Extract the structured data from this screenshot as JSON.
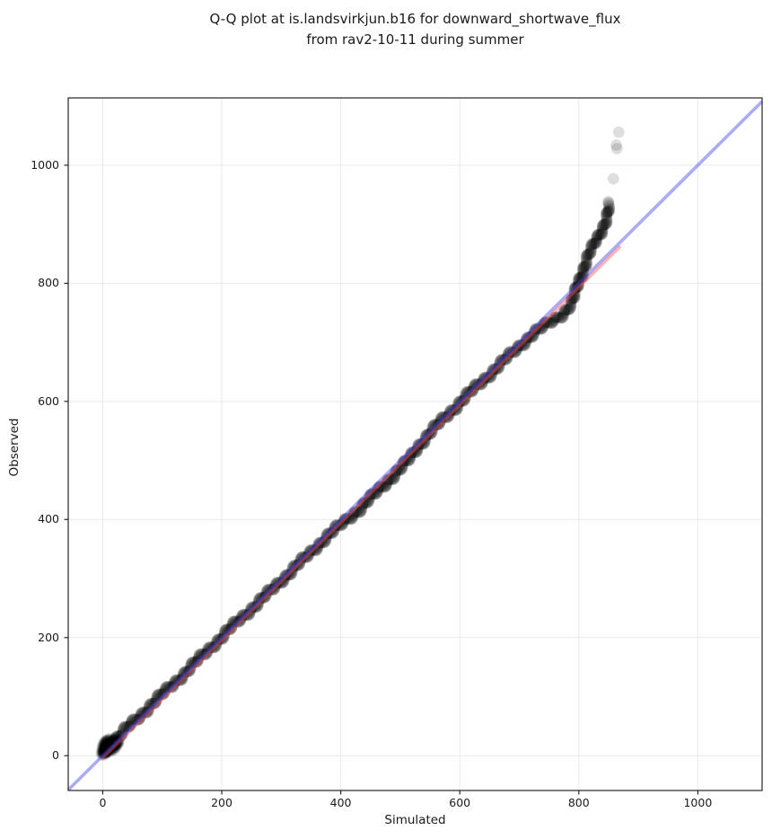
{
  "title": {
    "line1": "Q-Q plot at is.landsvirkjun.b16 for downward_shortwave_flux",
    "line2": "from rav2-10-11 during summer"
  },
  "chart_data": {
    "type": "scatter",
    "title": "Q-Q plot at is.landsvirkjun.b16 for downward_shortwave_flux from rav2-10-11 during summer",
    "xlabel": "Simulated",
    "ylabel": "Observed",
    "xlim": [
      -58,
      1108
    ],
    "ylim": [
      -59,
      1114
    ],
    "x_ticks": [
      0,
      200,
      400,
      600,
      800,
      1000
    ],
    "y_ticks": [
      0,
      200,
      400,
      600,
      800,
      1000
    ],
    "grid": true,
    "legend": "none",
    "colors": {
      "identity_line": "#4444ee",
      "fit_line": "#ff5555",
      "points": "#000000",
      "grid": "#e9e9e9",
      "spine": "#262626",
      "background": "#ffffff"
    },
    "identity_line": {
      "x": [
        -58,
        1108
      ],
      "y": [
        -58,
        1108
      ]
    },
    "fit_line": {
      "x": [
        0,
        870
      ],
      "y": [
        -4,
        863
      ]
    },
    "series": {
      "name": "quantile points (Observed vs Simulated)",
      "band_anchors": [
        [
          0,
          5
        ],
        [
          10,
          16
        ],
        [
          20,
          26
        ],
        [
          30,
          36
        ],
        [
          45,
          51
        ],
        [
          60,
          65
        ],
        [
          80,
          85
        ],
        [
          100,
          104
        ],
        [
          120,
          123
        ],
        [
          140,
          142
        ],
        [
          160,
          162
        ],
        [
          180,
          182
        ],
        [
          200,
          201
        ],
        [
          220,
          221
        ],
        [
          240,
          240
        ],
        [
          260,
          258
        ],
        [
          280,
          277
        ],
        [
          300,
          297
        ],
        [
          320,
          316
        ],
        [
          340,
          335
        ],
        [
          360,
          355
        ],
        [
          380,
          374
        ],
        [
          400,
          391
        ],
        [
          415,
          404
        ],
        [
          430,
          416
        ],
        [
          445,
          431
        ],
        [
          460,
          446
        ],
        [
          480,
          466
        ],
        [
          500,
          486
        ],
        [
          515,
          502
        ],
        [
          530,
          524
        ],
        [
          550,
          547
        ],
        [
          570,
          568
        ],
        [
          590,
          588
        ],
        [
          610,
          608
        ],
        [
          630,
          627
        ],
        [
          650,
          646
        ],
        [
          670,
          665
        ],
        [
          690,
          684
        ],
        [
          710,
          703
        ],
        [
          725,
          716
        ],
        [
          740,
          726
        ],
        [
          755,
          736
        ],
        [
          770,
          746
        ],
        [
          780,
          756
        ],
        [
          788,
          766
        ],
        [
          793,
          780
        ],
        [
          797,
          793
        ],
        [
          800,
          803
        ],
        [
          804,
          814
        ],
        [
          808,
          826
        ],
        [
          812,
          837
        ],
        [
          816,
          847
        ],
        [
          820,
          854
        ],
        [
          824,
          862
        ],
        [
          828,
          870
        ],
        [
          832,
          878
        ],
        [
          836,
          886
        ],
        [
          840,
          895
        ],
        [
          844,
          904
        ],
        [
          847,
          912
        ],
        [
          849,
          920
        ],
        [
          851,
          928
        ],
        [
          852,
          934
        ]
      ],
      "band_point_count": 1100,
      "origin_cluster": [
        [
          0,
          3
        ],
        [
          0,
          7
        ],
        [
          1,
          10
        ],
        [
          1,
          14
        ],
        [
          2,
          5
        ],
        [
          2,
          17
        ],
        [
          3,
          9
        ],
        [
          3,
          20
        ],
        [
          4,
          12
        ],
        [
          4,
          23
        ],
        [
          5,
          7
        ],
        [
          5,
          15
        ],
        [
          6,
          19
        ],
        [
          6,
          26
        ],
        [
          7,
          11
        ],
        [
          8,
          16
        ],
        [
          8,
          24
        ],
        [
          9,
          8
        ],
        [
          10,
          13
        ],
        [
          10,
          21
        ],
        [
          11,
          27
        ],
        [
          12,
          17
        ],
        [
          13,
          10
        ],
        [
          14,
          22
        ],
        [
          15,
          14
        ],
        [
          16,
          25
        ],
        [
          17,
          18
        ],
        [
          18,
          12
        ],
        [
          19,
          28
        ],
        [
          20,
          16
        ],
        [
          21,
          22
        ],
        [
          22,
          19
        ],
        [
          23,
          26
        ],
        [
          24,
          21
        ],
        [
          25,
          24
        ]
      ],
      "tail_outliers": [
        [
          858,
          977
        ],
        [
          863,
          1034
        ],
        [
          864,
          1028
        ],
        [
          867,
          1056
        ]
      ]
    }
  }
}
